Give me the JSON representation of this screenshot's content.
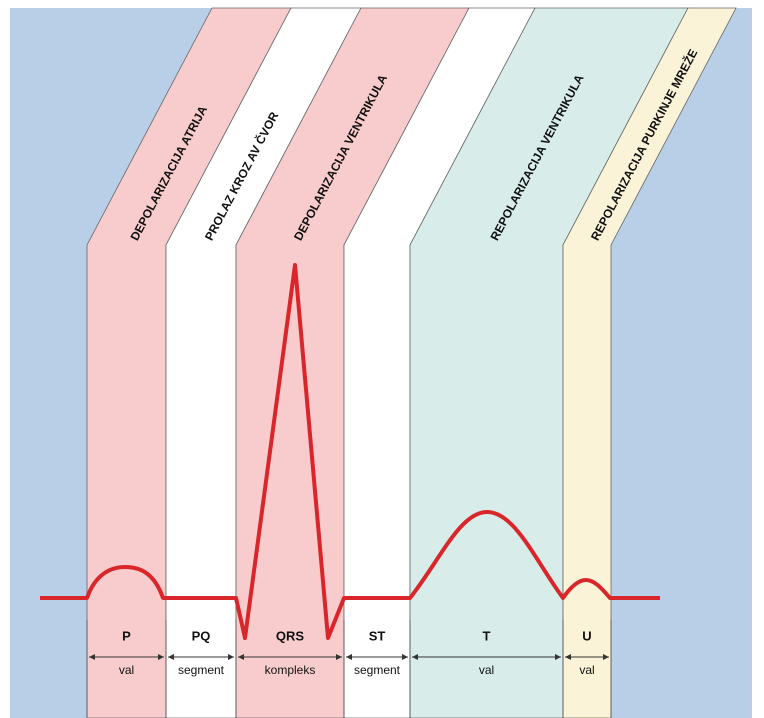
{
  "bands": [
    {
      "title": "DEPOLARIZACIJA ATRIJA",
      "name": "P",
      "description": "val"
    },
    {
      "title": "PROLAZ KROZ AV ČVOR",
      "name": "PQ",
      "description": "segment"
    },
    {
      "title": "DEPOLARIZACIJA VENTRIKULA",
      "name": "QRS",
      "description": "kompleks"
    },
    {
      "name": "ST",
      "description": "segment"
    },
    {
      "title": "REPOLARIZACIJA VENTRIKULA",
      "name": "T",
      "description": "val"
    },
    {
      "title": "REPOLARIZACIJA PURKINJE MREŽE",
      "name": "U",
      "description": "val"
    }
  ]
}
